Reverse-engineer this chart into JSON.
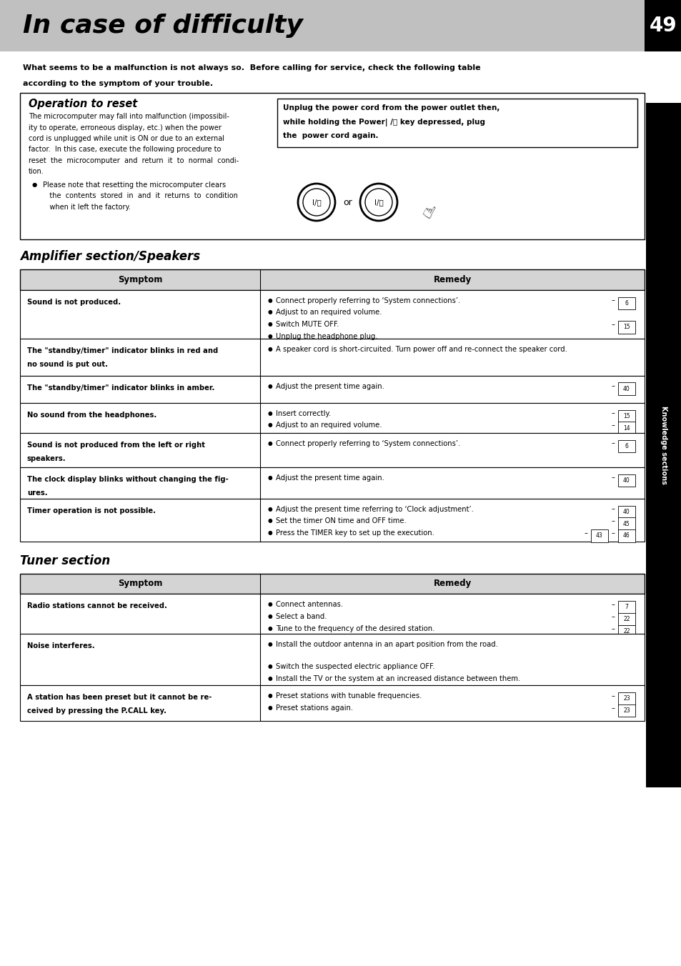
{
  "title": "In case of difficulty",
  "page_num": "49",
  "header_bg": "#c0c0c0",
  "intro_text_line1": "What seems to be a malfunction is not always so.  Before calling for service, check the following table",
  "intro_text_line2": "according to the symptom of your trouble.",
  "operation_title": "Operation to reset",
  "operation_body_lines": [
    "The microcomputer may fall into malfunction (impossibil-",
    "ity to operate, erroneous display, etc.) when the power",
    "cord is unplugged while unit is ON or due to an external",
    "factor.  In this case, execute the following procedure to",
    "reset  the  microcomputer  and  return  it  to  normal  condi-",
    "tion."
  ],
  "operation_bullet_lines": [
    "Please note that resetting the microcomputer clears",
    "   the  contents  stored  in  and  it  returns  to  condition",
    "   when it left the factory."
  ],
  "operation_box_lines": [
    "Unplug the power cord from the power outlet then,",
    "while holding the Power| /⏽ key depressed, plug",
    "the  power cord again."
  ],
  "amp_section_title": "Amplifier section/Speakers",
  "amp_col_header": [
    "Symptom",
    "Remedy"
  ],
  "amp_rows": [
    {
      "symptom_lines": [
        "Sound is not produced."
      ],
      "remedy_items": [
        {
          "text": "Connect properly referring to ‘System connections’.",
          "bold": "System connections",
          "refs": [
            "6"
          ]
        },
        {
          "text": "Adjust to an required volume.",
          "bold": "",
          "refs": []
        },
        {
          "text": "Switch MUTE OFF.",
          "bold": "",
          "refs": [
            "15"
          ]
        },
        {
          "text": "Unplug the headphone plug.",
          "bold": "",
          "refs": []
        }
      ]
    },
    {
      "symptom_lines": [
        "The \"standby/timer\" indicator blinks in red and",
        "no sound is put out."
      ],
      "remedy_items": [
        {
          "text": "A speaker cord is short-circuited. Turn power off and re-connect the speaker cord.",
          "bold": "",
          "refs": []
        }
      ]
    },
    {
      "symptom_lines": [
        "The \"standby/timer\" indicator blinks in amber."
      ],
      "remedy_items": [
        {
          "text": "Adjust the present time again.",
          "bold": "",
          "refs": [
            "40"
          ]
        }
      ]
    },
    {
      "symptom_lines": [
        "No sound from the headphones."
      ],
      "remedy_items": [
        {
          "text": "Insert correctly.",
          "bold": "",
          "refs": [
            "15"
          ]
        },
        {
          "text": "Adjust to an required volume.",
          "bold": "",
          "refs": [
            "14"
          ]
        }
      ]
    },
    {
      "symptom_lines": [
        "Sound is not produced from the left or right",
        "speakers."
      ],
      "remedy_items": [
        {
          "text": "Connect properly referring to ‘System connections’.",
          "bold": "System connections",
          "refs": [
            "6"
          ]
        }
      ]
    },
    {
      "symptom_lines": [
        "The clock display blinks without changing the fig-",
        "ures."
      ],
      "remedy_items": [
        {
          "text": "Adjust the present time again.",
          "bold": "",
          "refs": [
            "40"
          ]
        }
      ]
    },
    {
      "symptom_lines": [
        "Timer operation is not possible."
      ],
      "remedy_items": [
        {
          "text": "Adjust the present time referring to ‘Clock adjustment’.",
          "bold": "Clock adjustment",
          "refs": [
            "40"
          ]
        },
        {
          "text": "Set the timer ON time and OFF time.",
          "bold": "",
          "refs": [
            "45"
          ]
        },
        {
          "text": "Press the TIMER key to set up the execution.",
          "bold": "TIMER",
          "refs": [
            "43",
            "46"
          ]
        }
      ]
    }
  ],
  "tuner_section_title": "Tuner section",
  "tuner_col_header": [
    "Symptom",
    "Remedy"
  ],
  "tuner_rows": [
    {
      "symptom_lines": [
        "Radio stations cannot be received."
      ],
      "remedy_items": [
        {
          "text": "Connect antennas.",
          "bold": "",
          "refs": [
            "7"
          ]
        },
        {
          "text": "Select a band.",
          "bold": "",
          "refs": [
            "22"
          ]
        },
        {
          "text": "Tune to the frequency of the desired station.",
          "bold": "",
          "refs": [
            "22"
          ]
        }
      ]
    },
    {
      "symptom_lines": [
        "Noise interferes."
      ],
      "remedy_items": [
        {
          "text": "Install the outdoor antenna in an apart position from the road.",
          "bold": "",
          "refs": []
        },
        {
          "text": "Switch the suspected electric appliance OFF.",
          "bold": "",
          "refs": []
        },
        {
          "text": "Install the TV or the system at an increased distance between them.",
          "bold": "",
          "refs": []
        }
      ]
    },
    {
      "symptom_lines": [
        "A station has been preset but it cannot be re-",
        "ceived by pressing the P.CALL key."
      ],
      "remedy_items": [
        {
          "text": "Preset stations with tunable frequencies.",
          "bold": "",
          "refs": [
            "23"
          ]
        },
        {
          "text": "Preset stations again.",
          "bold": "",
          "refs": [
            "23"
          ]
        }
      ]
    }
  ],
  "sidebar_text": "Knowledge sections"
}
